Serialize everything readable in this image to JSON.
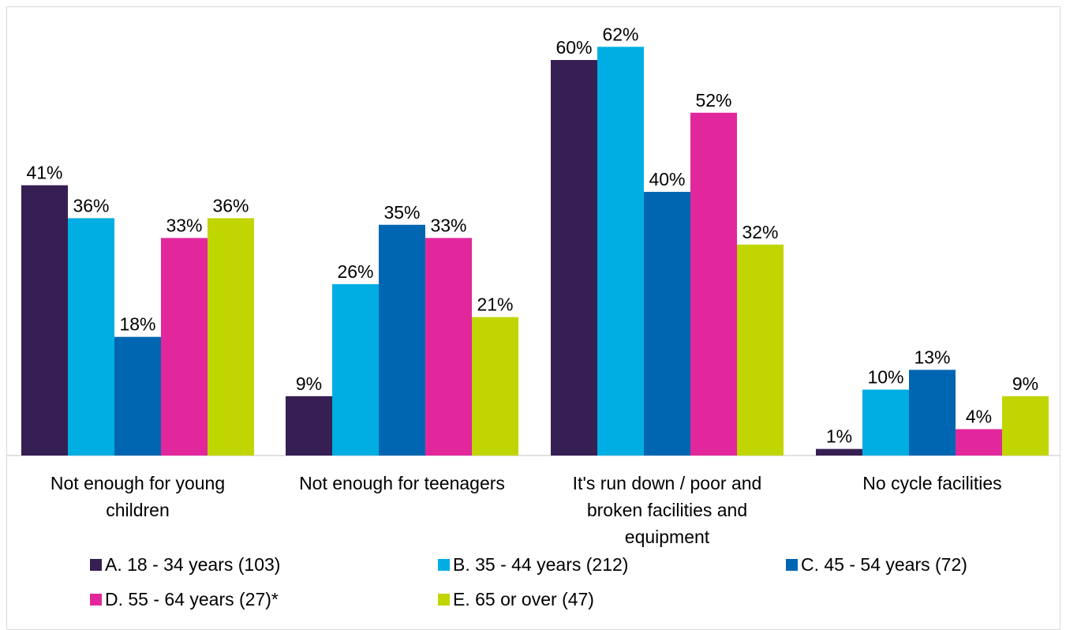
{
  "chart_data": {
    "type": "bar",
    "categories": [
      [
        "Not enough for young",
        "children"
      ],
      [
        "Not enough for teenagers"
      ],
      [
        "It's run down / poor and",
        "broken facilities and",
        "equipment"
      ],
      [
        "No cycle facilities"
      ]
    ],
    "series": [
      {
        "name": "A. 18 - 34 years (103)",
        "color": "#361f52",
        "values": [
          41,
          9,
          60,
          1
        ]
      },
      {
        "name": "B. 35 - 44 years (212)",
        "color": "#00aee3",
        "values": [
          36,
          26,
          62,
          10
        ]
      },
      {
        "name": "C. 45 - 54 years  (72)",
        "color": "#0066b2",
        "values": [
          18,
          35,
          40,
          13
        ]
      },
      {
        "name": "D. 55 - 64 years (27)*",
        "color": "#e2279c",
        "values": [
          33,
          33,
          52,
          4
        ]
      },
      {
        "name": "E. 65 or over (47)",
        "color": "#c1d501",
        "values": [
          36,
          21,
          32,
          9
        ]
      }
    ],
    "value_suffix": "%",
    "ylim": [
      0,
      70
    ],
    "grid": false,
    "legend_position": "bottom"
  }
}
